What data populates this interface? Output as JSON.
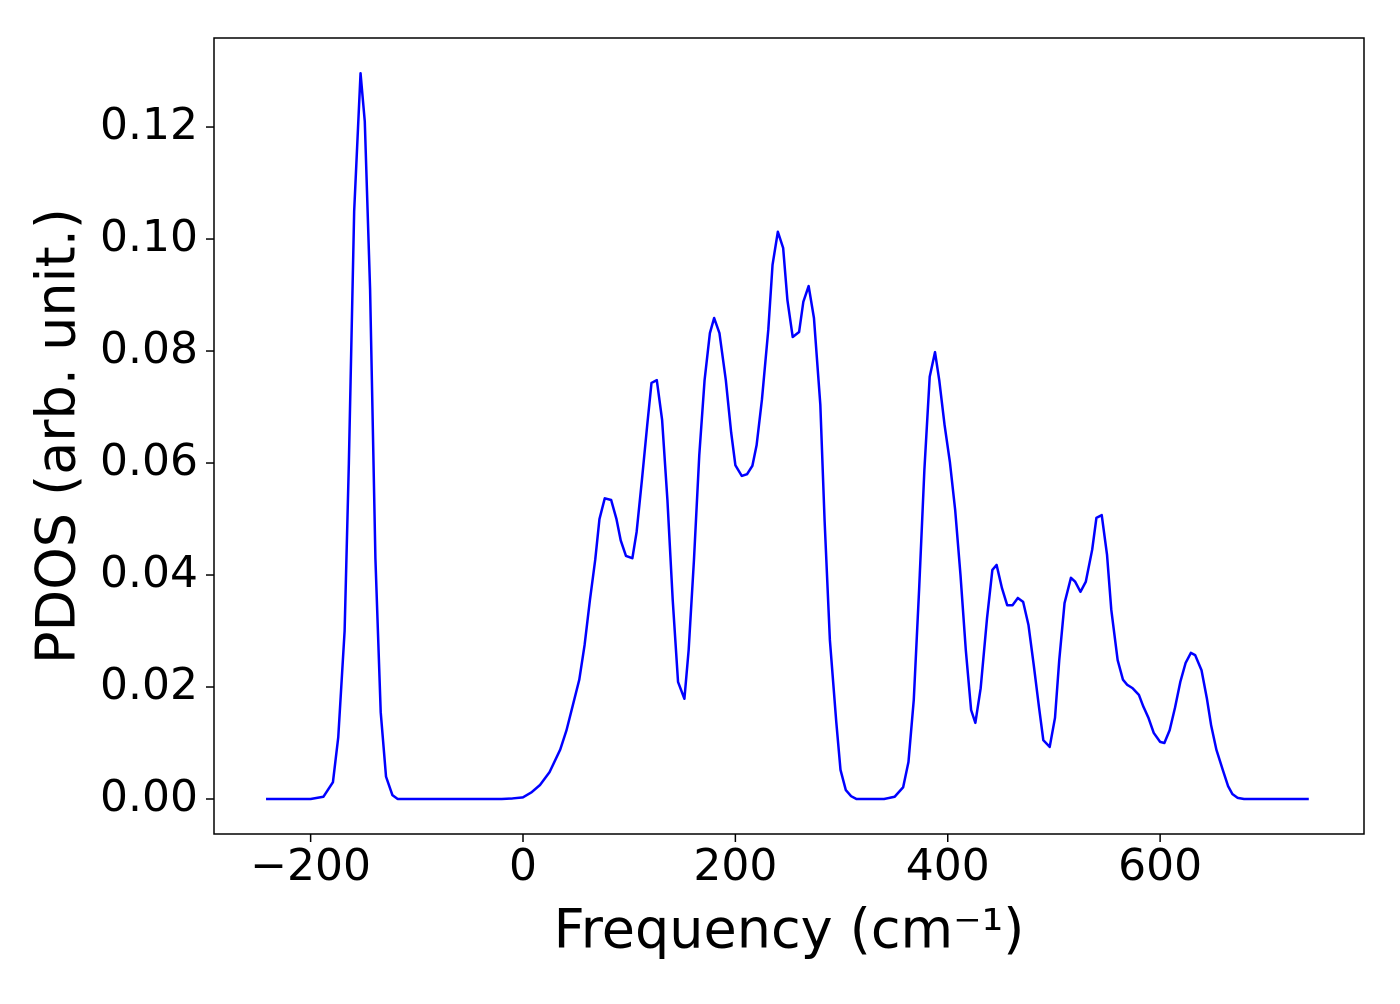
{
  "chart_data": {
    "type": "line",
    "x_label": "Frequency (cm⁻¹)",
    "y_label": "PDOS (arb. unit.)",
    "color": "#0000ff",
    "x": [
      -242,
      -200,
      -188,
      -179,
      -174,
      -168,
      -164,
      -159,
      -153,
      -149,
      -144,
      -139,
      -134,
      -129,
      -123,
      -118,
      -20,
      -10,
      0,
      8,
      16,
      25,
      35,
      41,
      47,
      53,
      58,
      63,
      68,
      72,
      77,
      83,
      88,
      92,
      97,
      103,
      107,
      112,
      117,
      121,
      126,
      131,
      136,
      141,
      146,
      152,
      156,
      161,
      166,
      171,
      176,
      180,
      185,
      191,
      196,
      200,
      206,
      211,
      216,
      220,
      225,
      231,
      235,
      240,
      245,
      249,
      254,
      260,
      264,
      269,
      274,
      280,
      284,
      289,
      295,
      299,
      304,
      309,
      314,
      340,
      350,
      358,
      363,
      368,
      373,
      378,
      383,
      388,
      392,
      397,
      402,
      407,
      412,
      417,
      422,
      426,
      431,
      437,
      442,
      446,
      451,
      456,
      461,
      466,
      471,
      476,
      481,
      486,
      490,
      496,
      501,
      505,
      510,
      516,
      520,
      525,
      530,
      536,
      540,
      545,
      550,
      554,
      560,
      565,
      569,
      574,
      580,
      584,
      589,
      594,
      600,
      604,
      609,
      614,
      619,
      624,
      629,
      633,
      639,
      644,
      648,
      653,
      659,
      664,
      668,
      673,
      679,
      740
    ],
    "values": [
      0,
      0,
      0.0004,
      0.003,
      0.011,
      0.03,
      0.06,
      0.105,
      0.1296,
      0.121,
      0.091,
      0.043,
      0.0155,
      0.004,
      0.0007,
      0,
      0,
      0.0001,
      0.0003,
      0.0012,
      0.0025,
      0.0048,
      0.0088,
      0.0123,
      0.0168,
      0.0213,
      0.0275,
      0.0355,
      0.0427,
      0.05,
      0.0537,
      0.0534,
      0.05,
      0.0462,
      0.0434,
      0.043,
      0.0477,
      0.057,
      0.0668,
      0.0743,
      0.0748,
      0.0677,
      0.0534,
      0.0355,
      0.0209,
      0.0179,
      0.0266,
      0.0427,
      0.0614,
      0.0748,
      0.0832,
      0.0859,
      0.0832,
      0.0748,
      0.0655,
      0.0596,
      0.0577,
      0.058,
      0.0595,
      0.0632,
      0.0713,
      0.0838,
      0.0954,
      0.1013,
      0.0984,
      0.0891,
      0.0825,
      0.0834,
      0.0888,
      0.0916,
      0.0859,
      0.0704,
      0.0498,
      0.0284,
      0.0138,
      0.0052,
      0.0016,
      0.0005,
      0,
      0,
      0.0004,
      0.0021,
      0.0066,
      0.0177,
      0.0373,
      0.0588,
      0.0754,
      0.0798,
      0.0748,
      0.0668,
      0.0602,
      0.0516,
      0.04,
      0.0266,
      0.0159,
      0.0136,
      0.0198,
      0.0323,
      0.0409,
      0.0418,
      0.0377,
      0.0346,
      0.0346,
      0.0359,
      0.0352,
      0.0311,
      0.0239,
      0.0163,
      0.0105,
      0.0093,
      0.0145,
      0.0248,
      0.035,
      0.0395,
      0.0388,
      0.037,
      0.0388,
      0.0445,
      0.0502,
      0.0507,
      0.0436,
      0.0338,
      0.0248,
      0.0213,
      0.0204,
      0.0198,
      0.0186,
      0.0166,
      0.0145,
      0.0118,
      0.0102,
      0.01,
      0.0123,
      0.0163,
      0.0209,
      0.0243,
      0.0261,
      0.0257,
      0.023,
      0.018,
      0.0132,
      0.0088,
      0.0052,
      0.0023,
      0.0009,
      0.0002,
      0,
      0
    ],
    "xlim": [
      -291,
      792
    ],
    "ylim": [
      -0.00625,
      0.1359
    ],
    "xticks": [
      {
        "value": -200,
        "label": "−200"
      },
      0,
      200,
      400,
      600
    ],
    "yticks": [
      {
        "value": 0,
        "label": "0.00"
      },
      {
        "value": 0.02,
        "label": "0.02"
      },
      {
        "value": 0.04,
        "label": "0.04"
      },
      {
        "value": 0.06,
        "label": "0.06"
      },
      {
        "value": 0.08,
        "label": "0.08"
      },
      {
        "value": 0.1,
        "label": "0.10"
      },
      {
        "value": 0.12,
        "label": "0.12"
      }
    ],
    "grid": false
  }
}
